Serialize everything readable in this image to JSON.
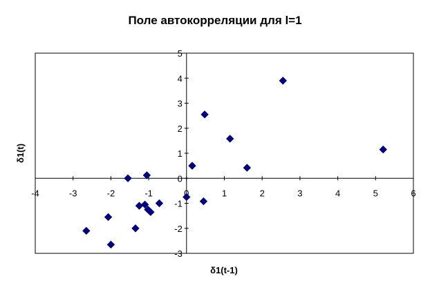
{
  "chart_data": {
    "type": "scatter",
    "title": "Поле автокорреляции для l=1",
    "xlabel": "δ1(t-1)",
    "ylabel": "δ1(t)",
    "xlim": [
      -4,
      6
    ],
    "ylim": [
      -3,
      5
    ],
    "xticks": [
      "-4",
      "-3",
      "-2",
      "-1",
      "0",
      "1",
      "2",
      "3",
      "4",
      "5",
      "6"
    ],
    "yticks": [
      "-3",
      "-2",
      "-1",
      "0",
      "1",
      "2",
      "3",
      "4",
      "5"
    ],
    "grid": false,
    "legend": false,
    "marker": "diamond",
    "series": [
      {
        "color": "#000080",
        "points": [
          {
            "x": -2.65,
            "y": -2.1
          },
          {
            "x": -2.0,
            "y": -2.65
          },
          {
            "x": -2.07,
            "y": -1.55
          },
          {
            "x": -1.35,
            "y": -2.0
          },
          {
            "x": -1.55,
            "y": 0.0
          },
          {
            "x": -1.05,
            "y": 0.12
          },
          {
            "x": -1.25,
            "y": -1.1
          },
          {
            "x": -1.1,
            "y": -1.05
          },
          {
            "x": -1.02,
            "y": -1.25
          },
          {
            "x": -0.95,
            "y": -1.35
          },
          {
            "x": -0.72,
            "y": -1.0
          },
          {
            "x": 0.0,
            "y": -0.75
          },
          {
            "x": 0.45,
            "y": -0.92
          },
          {
            "x": 0.15,
            "y": 0.5
          },
          {
            "x": 0.48,
            "y": 2.55
          },
          {
            "x": 1.15,
            "y": 1.58
          },
          {
            "x": 1.6,
            "y": 0.42
          },
          {
            "x": 2.55,
            "y": 3.9
          },
          {
            "x": 5.2,
            "y": 1.15
          }
        ]
      }
    ]
  }
}
